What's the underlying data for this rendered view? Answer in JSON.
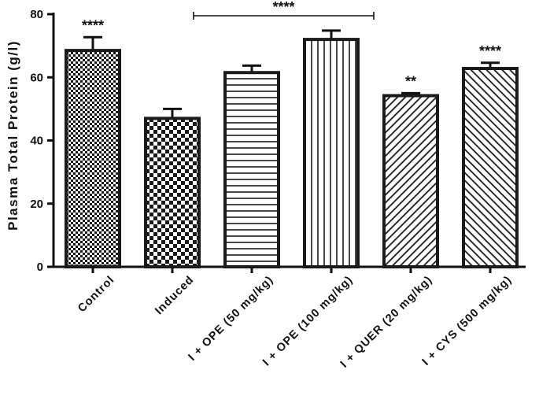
{
  "chart_data": {
    "type": "bar",
    "categories": [
      "Control",
      "Induced",
      "I + OPE (50 mg/kg)",
      "I + OPE (100 mg/kg)",
      "I + QUER (20 mg/kg)",
      "I + CYS (500 mg/kg)"
    ],
    "values": [
      68.5,
      47,
      61.5,
      72,
      54.2,
      62.8
    ],
    "errors": [
      4.2,
      3.0,
      2.2,
      2.8,
      0.8,
      1.8
    ],
    "significance": [
      "****",
      "",
      "",
      "",
      "**",
      "****"
    ],
    "bracket": {
      "from": 2,
      "to": 3,
      "label": "****"
    },
    "patterns": [
      "checker-small",
      "checker-large",
      "horizontal-lines",
      "vertical-lines",
      "diagonal-forward",
      "diagonal-back"
    ],
    "xlabel": "",
    "ylabel": "Plasma Total Protein (g/l)",
    "ylim": [
      0,
      80
    ],
    "yticks": [
      0,
      20,
      40,
      60,
      80
    ],
    "grid": false
  }
}
